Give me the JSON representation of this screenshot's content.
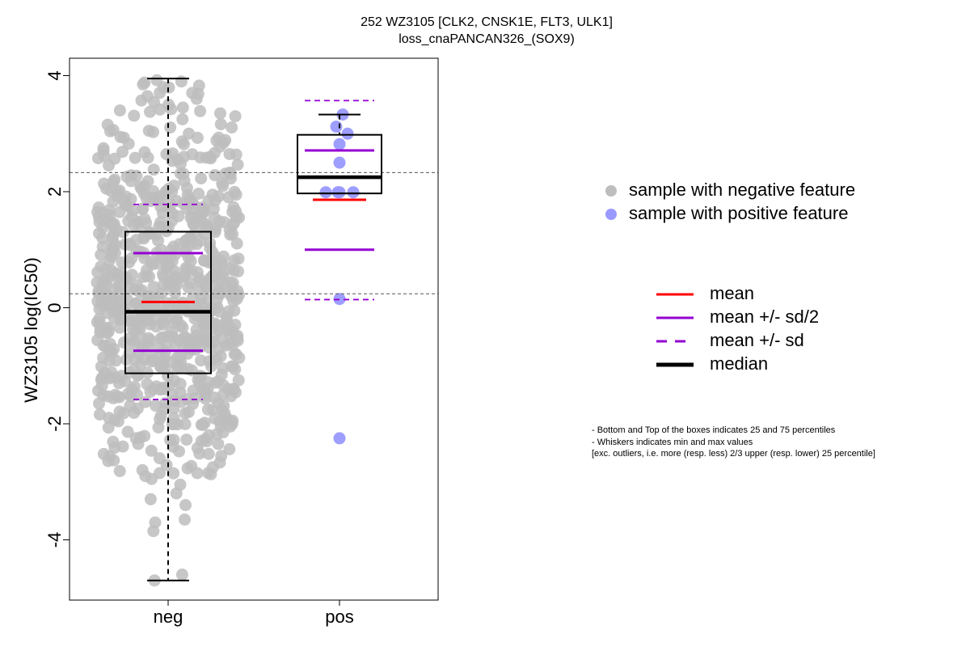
{
  "chart_data": {
    "type": "box",
    "title": "252 WZ3105 [CLK2, CNSK1E, FLT3, ULK1]",
    "subtitle": "loss_cnaPANCAN326_(SOX9)",
    "xlabel": "",
    "ylabel": "WZ3105 log(IC50)",
    "ylim": [
      -5.0,
      4.3
    ],
    "yticks": [
      "4",
      "2",
      "0",
      "-2",
      "-4"
    ],
    "yticks_values": [
      4,
      2,
      0,
      -2,
      -4
    ],
    "categories": [
      "neg",
      "pos"
    ],
    "reference_lines": [
      2.33,
      0.24
    ],
    "groups": [
      {
        "category": "neg",
        "n_points": 750,
        "whisker_max": 3.95,
        "q3": 1.31,
        "median": -0.07,
        "q1": -1.13,
        "whisker_min": -4.7,
        "mean": 0.1,
        "mean_plus_half_sd": 0.94,
        "mean_minus_half_sd": -0.74,
        "mean_plus_sd": 1.78,
        "mean_minus_sd": -1.58,
        "points": [
          -4.7,
          -4.6,
          -3.85,
          -3.7,
          -3.65,
          -3.4,
          -3.3,
          -3.2,
          -3.05,
          -2.95,
          -2.9,
          -2.85,
          -2.8,
          -2.75,
          3.9,
          3.92,
          3.88,
          3.85,
          3.8,
          3.7,
          3.6,
          3.5,
          3.45,
          3.4,
          3.35,
          3.3
        ]
      },
      {
        "category": "pos",
        "n_points": 12,
        "whisker_max": 3.33,
        "q3": 2.98,
        "median": 2.25,
        "q1": 1.97,
        "whisker_min": 1.97,
        "mean": 1.86,
        "mean_plus_half_sd": 2.71,
        "mean_minus_half_sd": 1.0,
        "mean_plus_sd": 3.57,
        "mean_minus_sd": 0.14,
        "points": [
          3.33,
          3.12,
          3.0,
          2.82,
          2.5,
          1.99,
          1.99,
          1.99,
          1.99,
          0.15,
          -2.25
        ]
      }
    ],
    "legend_points": [
      {
        "label": "sample with negative feature",
        "color": "#bdbdbd"
      },
      {
        "label": "sample with positive feature",
        "color": "#9999ff"
      }
    ],
    "legend_lines": [
      {
        "label": "mean",
        "color": "#ff0000",
        "style": "solid",
        "weight": "normal"
      },
      {
        "label": "mean +/- sd/2",
        "color": "#9400d3",
        "style": "solid",
        "weight": "normal"
      },
      {
        "label": "mean +/- sd",
        "color": "#9400d3",
        "style": "dashed",
        "weight": "normal"
      },
      {
        "label": "median",
        "color": "#000000",
        "style": "solid",
        "weight": "bold"
      }
    ],
    "notes": [
      "- Bottom and Top of the boxes indicates 25 and 75 percentiles",
      "- Whiskers indicates min and max values",
      "[exc. outliers, i.e. more (resp. less) 2/3 upper (resp. lower) 25 percentile]"
    ],
    "grid": false,
    "legend_position": "right"
  }
}
